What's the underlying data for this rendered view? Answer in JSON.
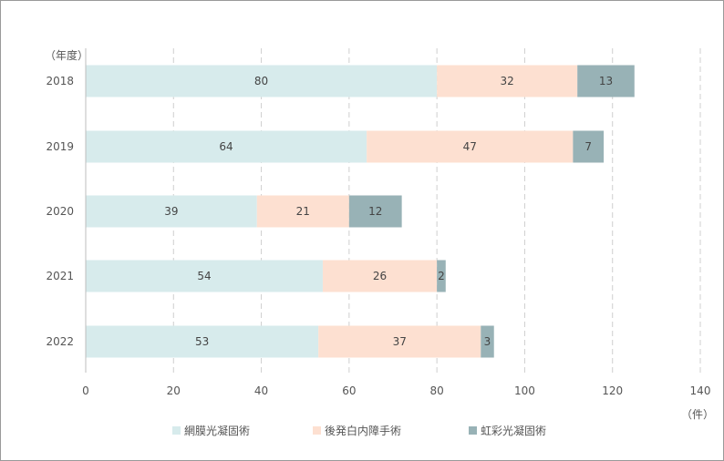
{
  "chart_data": {
    "type": "bar",
    "orientation": "horizontal",
    "stacked": true,
    "categories": [
      "2018",
      "2019",
      "2020",
      "2021",
      "2022"
    ],
    "series": [
      {
        "name": "網膜光凝固術",
        "color": "#d7ebec",
        "values": [
          80,
          64,
          39,
          54,
          53
        ]
      },
      {
        "name": "後発白内障手術",
        "color": "#fde0d1",
        "values": [
          32,
          47,
          21,
          26,
          37
        ]
      },
      {
        "name": "虹彩光凝固術",
        "color": "#98b2b6",
        "values": [
          13,
          7,
          12,
          2,
          3
        ]
      }
    ],
    "ylabel": "（年度）",
    "xlabel": "（件）",
    "xlim": [
      0,
      140
    ],
    "xticks": [
      "0",
      "20",
      "40",
      "60",
      "80",
      "100",
      "120",
      "140"
    ],
    "grid": "vertical dashed",
    "legend_position": "bottom"
  }
}
